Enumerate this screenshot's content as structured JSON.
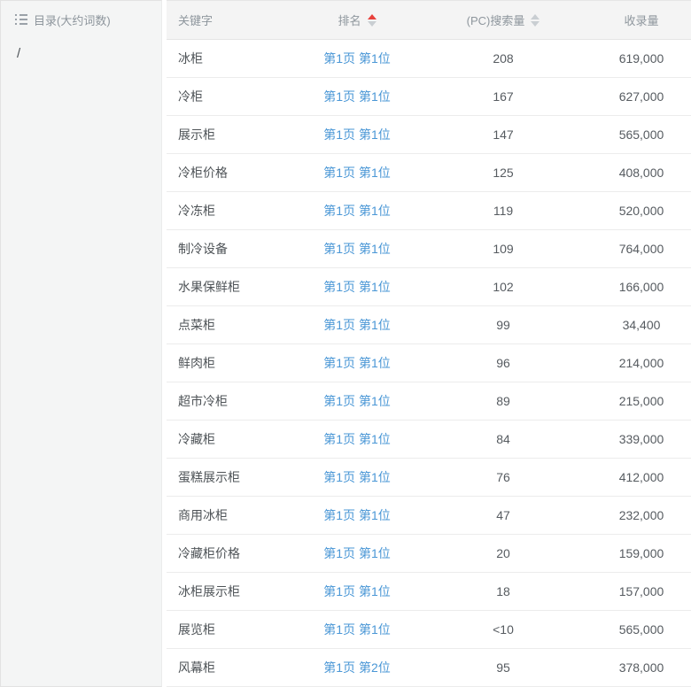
{
  "sidebar": {
    "title": "目录(大约词数)",
    "items": [
      {
        "label": "/"
      }
    ]
  },
  "table": {
    "columns": [
      {
        "label": "关键字",
        "sort": "none"
      },
      {
        "label": "排名",
        "sort": "asc"
      },
      {
        "label": "(PC)搜索量",
        "sort": "sortable"
      },
      {
        "label": "收录量",
        "sort": "none"
      }
    ],
    "rows": [
      {
        "keyword": "冰柜",
        "rank": "第1页 第1位",
        "search_volume": "208",
        "indexed": "619,000"
      },
      {
        "keyword": "冷柜",
        "rank": "第1页 第1位",
        "search_volume": "167",
        "indexed": "627,000"
      },
      {
        "keyword": "展示柜",
        "rank": "第1页 第1位",
        "search_volume": "147",
        "indexed": "565,000"
      },
      {
        "keyword": "冷柜价格",
        "rank": "第1页 第1位",
        "search_volume": "125",
        "indexed": "408,000"
      },
      {
        "keyword": "冷冻柜",
        "rank": "第1页 第1位",
        "search_volume": "119",
        "indexed": "520,000"
      },
      {
        "keyword": "制冷设备",
        "rank": "第1页 第1位",
        "search_volume": "109",
        "indexed": "764,000"
      },
      {
        "keyword": "水果保鲜柜",
        "rank": "第1页 第1位",
        "search_volume": "102",
        "indexed": "166,000"
      },
      {
        "keyword": "点菜柜",
        "rank": "第1页 第1位",
        "search_volume": "99",
        "indexed": "34,400"
      },
      {
        "keyword": "鲜肉柜",
        "rank": "第1页 第1位",
        "search_volume": "96",
        "indexed": "214,000"
      },
      {
        "keyword": "超市冷柜",
        "rank": "第1页 第1位",
        "search_volume": "89",
        "indexed": "215,000"
      },
      {
        "keyword": "冷藏柜",
        "rank": "第1页 第1位",
        "search_volume": "84",
        "indexed": "339,000"
      },
      {
        "keyword": "蛋糕展示柜",
        "rank": "第1页 第1位",
        "search_volume": "76",
        "indexed": "412,000"
      },
      {
        "keyword": "商用冰柜",
        "rank": "第1页 第1位",
        "search_volume": "47",
        "indexed": "232,000"
      },
      {
        "keyword": "冷藏柜价格",
        "rank": "第1页 第1位",
        "search_volume": "20",
        "indexed": "159,000"
      },
      {
        "keyword": "冰柜展示柜",
        "rank": "第1页 第1位",
        "search_volume": "18",
        "indexed": "157,000"
      },
      {
        "keyword": "展览柜",
        "rank": "第1页 第1位",
        "search_volume": "<10",
        "indexed": "565,000"
      },
      {
        "keyword": "风幕柜",
        "rank": "第1页 第2位",
        "search_volume": "95",
        "indexed": "378,000"
      }
    ]
  },
  "colors": {
    "link_blue": "#4a97d6",
    "sort_active_red": "#e8413c",
    "sort_inactive_gray": "#c9ced2",
    "panel_gray": "#f4f5f5",
    "header_gray": "#f4f4f4"
  }
}
